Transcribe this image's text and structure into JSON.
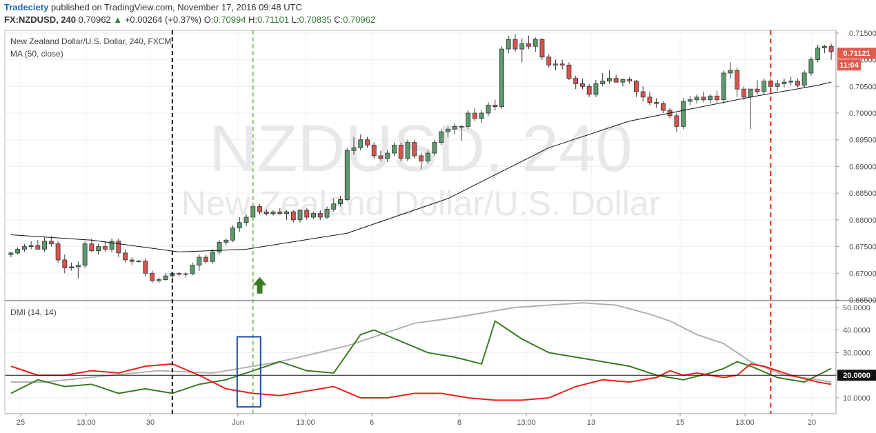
{
  "header": {
    "publisher": "Tradeciety",
    "published_text": "published on TradingView.com, November 17, 2016 09:48 UTC",
    "symbol": "FX:NZDUSD, 240",
    "last": "0.70962",
    "change_up_glyph": "▲",
    "change": "+0.00264 (+0.37%)",
    "o_label": "O:",
    "o": "0.70994",
    "h_label": "H:",
    "h": "0.71101",
    "l_label": "L:",
    "l": "0.70835",
    "c_label": "C:",
    "c": "0.70962"
  },
  "panes": {
    "price_legend": "New Zealand Dollar/U.S. Dollar, 240, FXCM",
    "ma_legend": "MA (50, close)",
    "dmi_legend": "DMI (14, 14)",
    "watermark_symbol": "NZDUSD, 240",
    "watermark_name": "New Zealand Dollar/U.S. Dollar",
    "price_tag": "0.71121",
    "time_tag": "11:04",
    "dmi_tag": "20.0000"
  },
  "colors": {
    "up": "#5b9a6e",
    "down": "#d9534f",
    "candle_border": "#333333",
    "ma": "#111111",
    "adx": "#b0b0b0",
    "di_plus": "#3a7a23",
    "di_minus": "#e8201a",
    "vline_black": "#111111",
    "vline_green": "#6ab04c",
    "vline_red": "#e8201a",
    "arrow": "#3a7a23",
    "box": "#1f4aa8",
    "tag_red": "#e05a4e"
  },
  "chart_data": [
    {
      "type": "candlestick",
      "title": "New Zealand Dollar/U.S. Dollar, 240, FXCM",
      "ylim": [
        0.665,
        0.7155
      ],
      "y_ticks": [
        "0.71500",
        "0.71000",
        "0.70500",
        "0.70000",
        "0.69500",
        "0.69000",
        "0.68500",
        "0.68000",
        "0.67500",
        "0.67000",
        "0.66500"
      ],
      "x_ticks": [
        "25",
        "13:00",
        "30",
        "Jun",
        "13:00",
        "6",
        "8",
        "13:00",
        "13",
        "15",
        "13:00",
        "20"
      ],
      "candles": [
        [
          0.6735,
          0.674,
          0.673,
          0.6738
        ],
        [
          0.6738,
          0.6748,
          0.6735,
          0.6745
        ],
        [
          0.6745,
          0.6755,
          0.674,
          0.675
        ],
        [
          0.675,
          0.676,
          0.6745,
          0.6752
        ],
        [
          0.6752,
          0.6762,
          0.6748,
          0.6745
        ],
        [
          0.6745,
          0.6768,
          0.674,
          0.676
        ],
        [
          0.676,
          0.677,
          0.675,
          0.6755
        ],
        [
          0.6755,
          0.676,
          0.672,
          0.6725
        ],
        [
          0.6725,
          0.6735,
          0.67,
          0.671
        ],
        [
          0.671,
          0.672,
          0.6705,
          0.6712
        ],
        [
          0.6712,
          0.6722,
          0.669,
          0.6715
        ],
        [
          0.6715,
          0.676,
          0.671,
          0.6755
        ],
        [
          0.6755,
          0.6765,
          0.674,
          0.6742
        ],
        [
          0.6742,
          0.6755,
          0.6735,
          0.675
        ],
        [
          0.675,
          0.676,
          0.674,
          0.6745
        ],
        [
          0.6745,
          0.6765,
          0.674,
          0.676
        ],
        [
          0.676,
          0.6765,
          0.673,
          0.6738
        ],
        [
          0.6738,
          0.6745,
          0.672,
          0.6725
        ],
        [
          0.6725,
          0.673,
          0.6715,
          0.6722
        ],
        [
          0.6722,
          0.6725,
          0.672,
          0.6723
        ],
        [
          0.6723,
          0.6728,
          0.6695,
          0.67
        ],
        [
          0.67,
          0.6705,
          0.6682,
          0.6686
        ],
        [
          0.6686,
          0.6692,
          0.6682,
          0.6688
        ],
        [
          0.6688,
          0.67,
          0.6686,
          0.6695
        ],
        [
          0.6695,
          0.6702,
          0.669,
          0.67
        ],
        [
          0.67,
          0.6702,
          0.6694,
          0.6698
        ],
        [
          0.6698,
          0.6702,
          0.6692,
          0.6699
        ],
        [
          0.6699,
          0.672,
          0.6696,
          0.6715
        ],
        [
          0.6715,
          0.6735,
          0.6705,
          0.673
        ],
        [
          0.673,
          0.6735,
          0.6718,
          0.6722
        ],
        [
          0.6722,
          0.6745,
          0.6718,
          0.674
        ],
        [
          0.674,
          0.6762,
          0.6735,
          0.6758
        ],
        [
          0.6758,
          0.6765,
          0.6752,
          0.6762
        ],
        [
          0.6762,
          0.679,
          0.6758,
          0.6785
        ],
        [
          0.6785,
          0.6805,
          0.6778,
          0.6795
        ],
        [
          0.6795,
          0.681,
          0.6788,
          0.6805
        ],
        [
          0.6805,
          0.683,
          0.6798,
          0.6825
        ],
        [
          0.6825,
          0.683,
          0.681,
          0.6815
        ],
        [
          0.6815,
          0.682,
          0.6808,
          0.6812
        ],
        [
          0.6812,
          0.6818,
          0.6808,
          0.6815
        ],
        [
          0.6815,
          0.6822,
          0.681,
          0.6812
        ],
        [
          0.6812,
          0.6818,
          0.68,
          0.6815
        ],
        [
          0.6815,
          0.6818,
          0.6795,
          0.68
        ],
        [
          0.68,
          0.682,
          0.6795,
          0.6818
        ],
        [
          0.6818,
          0.6822,
          0.68,
          0.6805
        ],
        [
          0.6805,
          0.6815,
          0.6802,
          0.6812
        ],
        [
          0.6812,
          0.6818,
          0.68,
          0.6805
        ],
        [
          0.6805,
          0.6825,
          0.6802,
          0.682
        ],
        [
          0.682,
          0.684,
          0.6815,
          0.683
        ],
        [
          0.683,
          0.6845,
          0.6825,
          0.6838
        ],
        [
          0.6838,
          0.6935,
          0.6835,
          0.693
        ],
        [
          0.693,
          0.6955,
          0.6922,
          0.6935
        ],
        [
          0.6935,
          0.696,
          0.693,
          0.695
        ],
        [
          0.695,
          0.6955,
          0.6935,
          0.694
        ],
        [
          0.694,
          0.6945,
          0.6915,
          0.692
        ],
        [
          0.692,
          0.693,
          0.691,
          0.6915
        ],
        [
          0.6915,
          0.693,
          0.6908,
          0.6925
        ],
        [
          0.6925,
          0.6945,
          0.692,
          0.694
        ],
        [
          0.694,
          0.6945,
          0.691,
          0.6915
        ],
        [
          0.6915,
          0.695,
          0.691,
          0.6945
        ],
        [
          0.6945,
          0.695,
          0.6915,
          0.692
        ],
        [
          0.692,
          0.6925,
          0.6895,
          0.691
        ],
        [
          0.691,
          0.693,
          0.6905,
          0.6925
        ],
        [
          0.6925,
          0.695,
          0.692,
          0.6945
        ],
        [
          0.6945,
          0.697,
          0.694,
          0.6965
        ],
        [
          0.6965,
          0.6975,
          0.6955,
          0.697
        ],
        [
          0.697,
          0.698,
          0.696,
          0.6975
        ],
        [
          0.6975,
          0.6978,
          0.6948,
          0.6975
        ],
        [
          0.6975,
          0.7005,
          0.697,
          0.7
        ],
        [
          0.7,
          0.701,
          0.6985,
          0.699
        ],
        [
          0.699,
          0.7005,
          0.6982,
          0.7
        ],
        [
          0.7,
          0.702,
          0.6995,
          0.7015
        ],
        [
          0.7015,
          0.7025,
          0.7005,
          0.7012
        ],
        [
          0.7012,
          0.7125,
          0.7008,
          0.712
        ],
        [
          0.712,
          0.7145,
          0.7112,
          0.7138
        ],
        [
          0.7138,
          0.7148,
          0.7115,
          0.712
        ],
        [
          0.712,
          0.714,
          0.7095,
          0.713
        ],
        [
          0.713,
          0.7145,
          0.712,
          0.7125
        ],
        [
          0.7125,
          0.7142,
          0.7115,
          0.7138
        ],
        [
          0.7138,
          0.714,
          0.71,
          0.7105
        ],
        [
          0.7105,
          0.711,
          0.7085,
          0.709
        ],
        [
          0.709,
          0.71,
          0.708,
          0.7092
        ],
        [
          0.7092,
          0.71,
          0.7082,
          0.709
        ],
        [
          0.709,
          0.7095,
          0.7062,
          0.7065
        ],
        [
          0.7065,
          0.707,
          0.7045,
          0.7055
        ],
        [
          0.7055,
          0.7065,
          0.7045,
          0.705
        ],
        [
          0.705,
          0.7055,
          0.703,
          0.7035
        ],
        [
          0.7035,
          0.7062,
          0.703,
          0.7055
        ],
        [
          0.7055,
          0.7075,
          0.705,
          0.706
        ],
        [
          0.706,
          0.708,
          0.7055,
          0.7065
        ],
        [
          0.7065,
          0.7072,
          0.7058,
          0.7058
        ],
        [
          0.7058,
          0.7065,
          0.705,
          0.7063
        ],
        [
          0.7063,
          0.7068,
          0.7055,
          0.706
        ],
        [
          0.706,
          0.7062,
          0.703,
          0.704
        ],
        [
          0.704,
          0.705,
          0.7022,
          0.703
        ],
        [
          0.703,
          0.704,
          0.7015,
          0.702
        ],
        [
          0.702,
          0.7028,
          0.701,
          0.7018
        ],
        [
          0.7018,
          0.7022,
          0.7,
          0.7005
        ],
        [
          0.7005,
          0.701,
          0.699,
          0.6995
        ],
        [
          0.6995,
          0.7,
          0.6965,
          0.6975
        ],
        [
          0.6975,
          0.7028,
          0.697,
          0.7022
        ],
        [
          0.7022,
          0.7032,
          0.7015,
          0.7025
        ],
        [
          0.7025,
          0.7035,
          0.7018,
          0.703
        ],
        [
          0.703,
          0.704,
          0.702,
          0.7025
        ],
        [
          0.7025,
          0.7035,
          0.7018,
          0.7032
        ],
        [
          0.7032,
          0.7042,
          0.702,
          0.7025
        ],
        [
          0.7025,
          0.708,
          0.7018,
          0.7075
        ],
        [
          0.7075,
          0.7095,
          0.7065,
          0.708
        ],
        [
          0.708,
          0.7085,
          0.703,
          0.7045
        ],
        [
          0.7045,
          0.705,
          0.7025,
          0.703
        ],
        [
          0.703,
          0.704,
          0.697,
          0.7045
        ],
        [
          0.7045,
          0.7062,
          0.7035,
          0.704
        ],
        [
          0.704,
          0.7065,
          0.7035,
          0.706
        ],
        [
          0.706,
          0.7065,
          0.7045,
          0.705
        ],
        [
          0.705,
          0.7062,
          0.7042,
          0.7055
        ],
        [
          0.7055,
          0.7065,
          0.7048,
          0.7058
        ],
        [
          0.7058,
          0.7068,
          0.7052,
          0.706
        ],
        [
          0.706,
          0.7065,
          0.7048,
          0.7052
        ],
        [
          0.7052,
          0.708,
          0.7048,
          0.7075
        ],
        [
          0.7075,
          0.7105,
          0.707,
          0.71
        ],
        [
          0.71,
          0.7128,
          0.7095,
          0.7122
        ],
        [
          0.7122,
          0.7128,
          0.7112,
          0.7125
        ],
        [
          0.7125,
          0.713,
          0.71,
          0.7115
        ]
      ],
      "ma_series": {
        "name": "MA (50, close)",
        "x_index": [
          0,
          12,
          25,
          35,
          50,
          65,
          80,
          92,
          98,
          110,
          120,
          122
        ],
        "values": [
          0.6772,
          0.6762,
          0.674,
          0.6745,
          0.6775,
          0.684,
          0.6935,
          0.6985,
          0.7,
          0.703,
          0.7052,
          0.7058
        ]
      },
      "markers": {
        "vline_black_index": 24,
        "vline_green_index": 36,
        "vline_red_index": 113,
        "arrow_index": 37,
        "arrow_value": 0.668
      }
    },
    {
      "type": "line",
      "title": "DMI (14, 14)",
      "ylim": [
        3,
        53
      ],
      "y_ticks": [
        "50.0000",
        "40.0000",
        "30.0000",
        "20.0000",
        "10.0000"
      ],
      "reference_line": 20,
      "series": [
        {
          "key": "adx",
          "x_index": [
            0,
            5,
            15,
            22,
            30,
            40,
            50,
            60,
            65,
            75,
            85,
            90,
            95,
            98,
            102,
            106,
            110,
            115,
            120,
            122
          ],
          "values": [
            17,
            17,
            20,
            22,
            21,
            26,
            33,
            43,
            45,
            50,
            52,
            51,
            47,
            44,
            38,
            34,
            26,
            20,
            18,
            17
          ]
        },
        {
          "key": "di_plus",
          "x_index": [
            0,
            4,
            8,
            12,
            16,
            20,
            24,
            28,
            32,
            36,
            40,
            44,
            48,
            52,
            54,
            58,
            62,
            66,
            70,
            72,
            74,
            76,
            78,
            80,
            82,
            84,
            86,
            88,
            90,
            92,
            96,
            100,
            104,
            106,
            108,
            110,
            114,
            118,
            122
          ],
          "values": [
            12,
            18,
            15,
            16,
            12,
            14,
            12,
            16,
            18,
            22,
            26,
            22,
            21,
            38,
            40,
            35,
            30,
            28,
            25,
            44,
            40,
            36,
            33,
            30,
            29,
            28,
            27,
            26,
            25,
            24,
            20,
            18,
            21,
            23,
            26,
            24,
            19,
            17,
            23
          ]
        },
        {
          "key": "di_minus",
          "x_index": [
            0,
            4,
            8,
            12,
            16,
            20,
            24,
            28,
            32,
            36,
            40,
            44,
            48,
            52,
            56,
            60,
            64,
            68,
            72,
            76,
            80,
            84,
            88,
            92,
            96,
            98,
            100,
            102,
            104,
            106,
            108,
            110,
            112,
            116,
            120,
            122
          ],
          "values": [
            24,
            20,
            20,
            22,
            21,
            24,
            25,
            20,
            14,
            12,
            11,
            13,
            15,
            10,
            10,
            12,
            12,
            10,
            9,
            9,
            10,
            15,
            18,
            17,
            19,
            22,
            20,
            21,
            20,
            19,
            20,
            25,
            24,
            20,
            17,
            16
          ]
        }
      ]
    }
  ]
}
